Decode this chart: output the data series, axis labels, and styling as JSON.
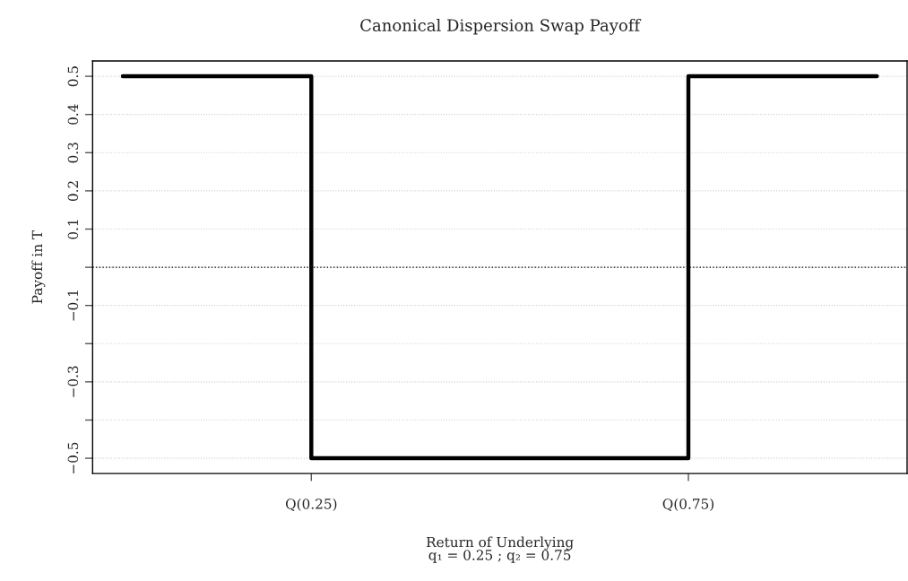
{
  "chart_data": {
    "type": "step",
    "title": "Canonical Dispersion Swap Payoff",
    "xlabel": "Return of Underlying\nq₁ = 0.25 ; q₂ = 0.75",
    "ylabel": "Payoff in T",
    "categories": [
      null,
      "Q(0.25)",
      null,
      "Q(0.75)",
      null
    ],
    "series": [
      {
        "color": "#000000",
        "values": [
          0.5,
          0.5,
          -0.5,
          -0.5,
          0.5
        ]
      }
    ],
    "ylim": [
      -0.54,
      0.54
    ],
    "yticks": [
      {
        "value": -0.5,
        "label": "−0.5"
      },
      {
        "value": -0.4,
        "label": null
      },
      {
        "value": -0.3,
        "label": "−0.3"
      },
      {
        "value": -0.2,
        "label": null
      },
      {
        "value": -0.1,
        "label": "−0.1"
      },
      {
        "value": 0,
        "label": null
      },
      0.1,
      0.2,
      0.3,
      0.4,
      0.5
    ],
    "ref_lines": [
      {
        "axis": "y",
        "value": 0,
        "color": "#000000",
        "line_style": "dotted"
      }
    ],
    "grid": "y",
    "legend": false,
    "marker": "none",
    "line_style": "solid"
  }
}
